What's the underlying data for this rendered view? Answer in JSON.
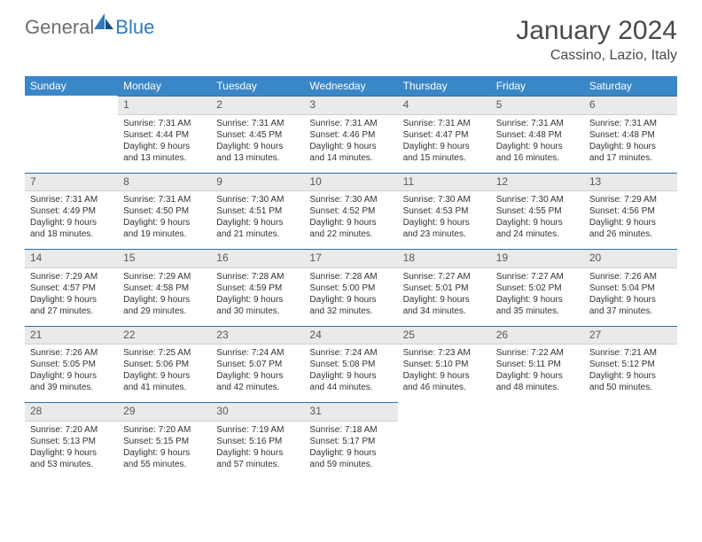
{
  "brand": {
    "part1": "General",
    "part2": "Blue"
  },
  "title": "January 2024",
  "location": "Cassino, Lazio, Italy",
  "colors": {
    "header_bg": "#3a87c8",
    "daynum_bg": "#e9eaeb",
    "daynum_border_top": "#2f6ca0",
    "logo_gray": "#6e6e6e",
    "logo_blue": "#2f7ac0"
  },
  "weekdays": [
    "Sunday",
    "Monday",
    "Tuesday",
    "Wednesday",
    "Thursday",
    "Friday",
    "Saturday"
  ],
  "weeks": [
    [
      null,
      {
        "n": "1",
        "sr": "7:31 AM",
        "ss": "4:44 PM",
        "dl": "9 hours and 13 minutes."
      },
      {
        "n": "2",
        "sr": "7:31 AM",
        "ss": "4:45 PM",
        "dl": "9 hours and 13 minutes."
      },
      {
        "n": "3",
        "sr": "7:31 AM",
        "ss": "4:46 PM",
        "dl": "9 hours and 14 minutes."
      },
      {
        "n": "4",
        "sr": "7:31 AM",
        "ss": "4:47 PM",
        "dl": "9 hours and 15 minutes."
      },
      {
        "n": "5",
        "sr": "7:31 AM",
        "ss": "4:48 PM",
        "dl": "9 hours and 16 minutes."
      },
      {
        "n": "6",
        "sr": "7:31 AM",
        "ss": "4:48 PM",
        "dl": "9 hours and 17 minutes."
      }
    ],
    [
      {
        "n": "7",
        "sr": "7:31 AM",
        "ss": "4:49 PM",
        "dl": "9 hours and 18 minutes."
      },
      {
        "n": "8",
        "sr": "7:31 AM",
        "ss": "4:50 PM",
        "dl": "9 hours and 19 minutes."
      },
      {
        "n": "9",
        "sr": "7:30 AM",
        "ss": "4:51 PM",
        "dl": "9 hours and 21 minutes."
      },
      {
        "n": "10",
        "sr": "7:30 AM",
        "ss": "4:52 PM",
        "dl": "9 hours and 22 minutes."
      },
      {
        "n": "11",
        "sr": "7:30 AM",
        "ss": "4:53 PM",
        "dl": "9 hours and 23 minutes."
      },
      {
        "n": "12",
        "sr": "7:30 AM",
        "ss": "4:55 PM",
        "dl": "9 hours and 24 minutes."
      },
      {
        "n": "13",
        "sr": "7:29 AM",
        "ss": "4:56 PM",
        "dl": "9 hours and 26 minutes."
      }
    ],
    [
      {
        "n": "14",
        "sr": "7:29 AM",
        "ss": "4:57 PM",
        "dl": "9 hours and 27 minutes."
      },
      {
        "n": "15",
        "sr": "7:29 AM",
        "ss": "4:58 PM",
        "dl": "9 hours and 29 minutes."
      },
      {
        "n": "16",
        "sr": "7:28 AM",
        "ss": "4:59 PM",
        "dl": "9 hours and 30 minutes."
      },
      {
        "n": "17",
        "sr": "7:28 AM",
        "ss": "5:00 PM",
        "dl": "9 hours and 32 minutes."
      },
      {
        "n": "18",
        "sr": "7:27 AM",
        "ss": "5:01 PM",
        "dl": "9 hours and 34 minutes."
      },
      {
        "n": "19",
        "sr": "7:27 AM",
        "ss": "5:02 PM",
        "dl": "9 hours and 35 minutes."
      },
      {
        "n": "20",
        "sr": "7:26 AM",
        "ss": "5:04 PM",
        "dl": "9 hours and 37 minutes."
      }
    ],
    [
      {
        "n": "21",
        "sr": "7:26 AM",
        "ss": "5:05 PM",
        "dl": "9 hours and 39 minutes."
      },
      {
        "n": "22",
        "sr": "7:25 AM",
        "ss": "5:06 PM",
        "dl": "9 hours and 41 minutes."
      },
      {
        "n": "23",
        "sr": "7:24 AM",
        "ss": "5:07 PM",
        "dl": "9 hours and 42 minutes."
      },
      {
        "n": "24",
        "sr": "7:24 AM",
        "ss": "5:08 PM",
        "dl": "9 hours and 44 minutes."
      },
      {
        "n": "25",
        "sr": "7:23 AM",
        "ss": "5:10 PM",
        "dl": "9 hours and 46 minutes."
      },
      {
        "n": "26",
        "sr": "7:22 AM",
        "ss": "5:11 PM",
        "dl": "9 hours and 48 minutes."
      },
      {
        "n": "27",
        "sr": "7:21 AM",
        "ss": "5:12 PM",
        "dl": "9 hours and 50 minutes."
      }
    ],
    [
      {
        "n": "28",
        "sr": "7:20 AM",
        "ss": "5:13 PM",
        "dl": "9 hours and 53 minutes."
      },
      {
        "n": "29",
        "sr": "7:20 AM",
        "ss": "5:15 PM",
        "dl": "9 hours and 55 minutes."
      },
      {
        "n": "30",
        "sr": "7:19 AM",
        "ss": "5:16 PM",
        "dl": "9 hours and 57 minutes."
      },
      {
        "n": "31",
        "sr": "7:18 AM",
        "ss": "5:17 PM",
        "dl": "9 hours and 59 minutes."
      },
      null,
      null,
      null
    ]
  ],
  "labels": {
    "sunrise": "Sunrise: ",
    "sunset": "Sunset: ",
    "daylight": "Daylight: "
  }
}
